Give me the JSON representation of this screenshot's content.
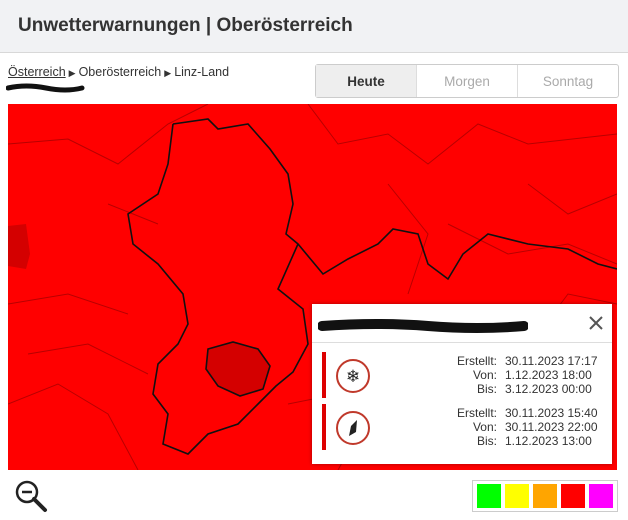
{
  "header": {
    "title": "Unwetterwarnungen | Oberösterreich"
  },
  "breadcrumb": [
    "Österreich",
    "Oberösterreich",
    "Linz-Land"
  ],
  "tabs": [
    "Heute",
    "Morgen",
    "Sonntag"
  ],
  "active_tab": 0,
  "popup": {
    "warnings": [
      {
        "created_label": "Erstellt:",
        "created": "30.11.2023 17:17",
        "from_label": "Von:",
        "from": "1.12.2023 18:00",
        "to_label": "Bis:",
        "to": "3.12.2023 00:00"
      },
      {
        "created_label": "Erstellt:",
        "created": "30.11.2023 15:40",
        "from_label": "Von:",
        "from": "30.11.2023 22:00",
        "to_label": "Bis:",
        "to": "1.12.2023 13:00"
      }
    ]
  },
  "legend_colors": [
    "#00ff00",
    "#ffff00",
    "#ffa500",
    "#ff0000",
    "#ff00ff"
  ]
}
